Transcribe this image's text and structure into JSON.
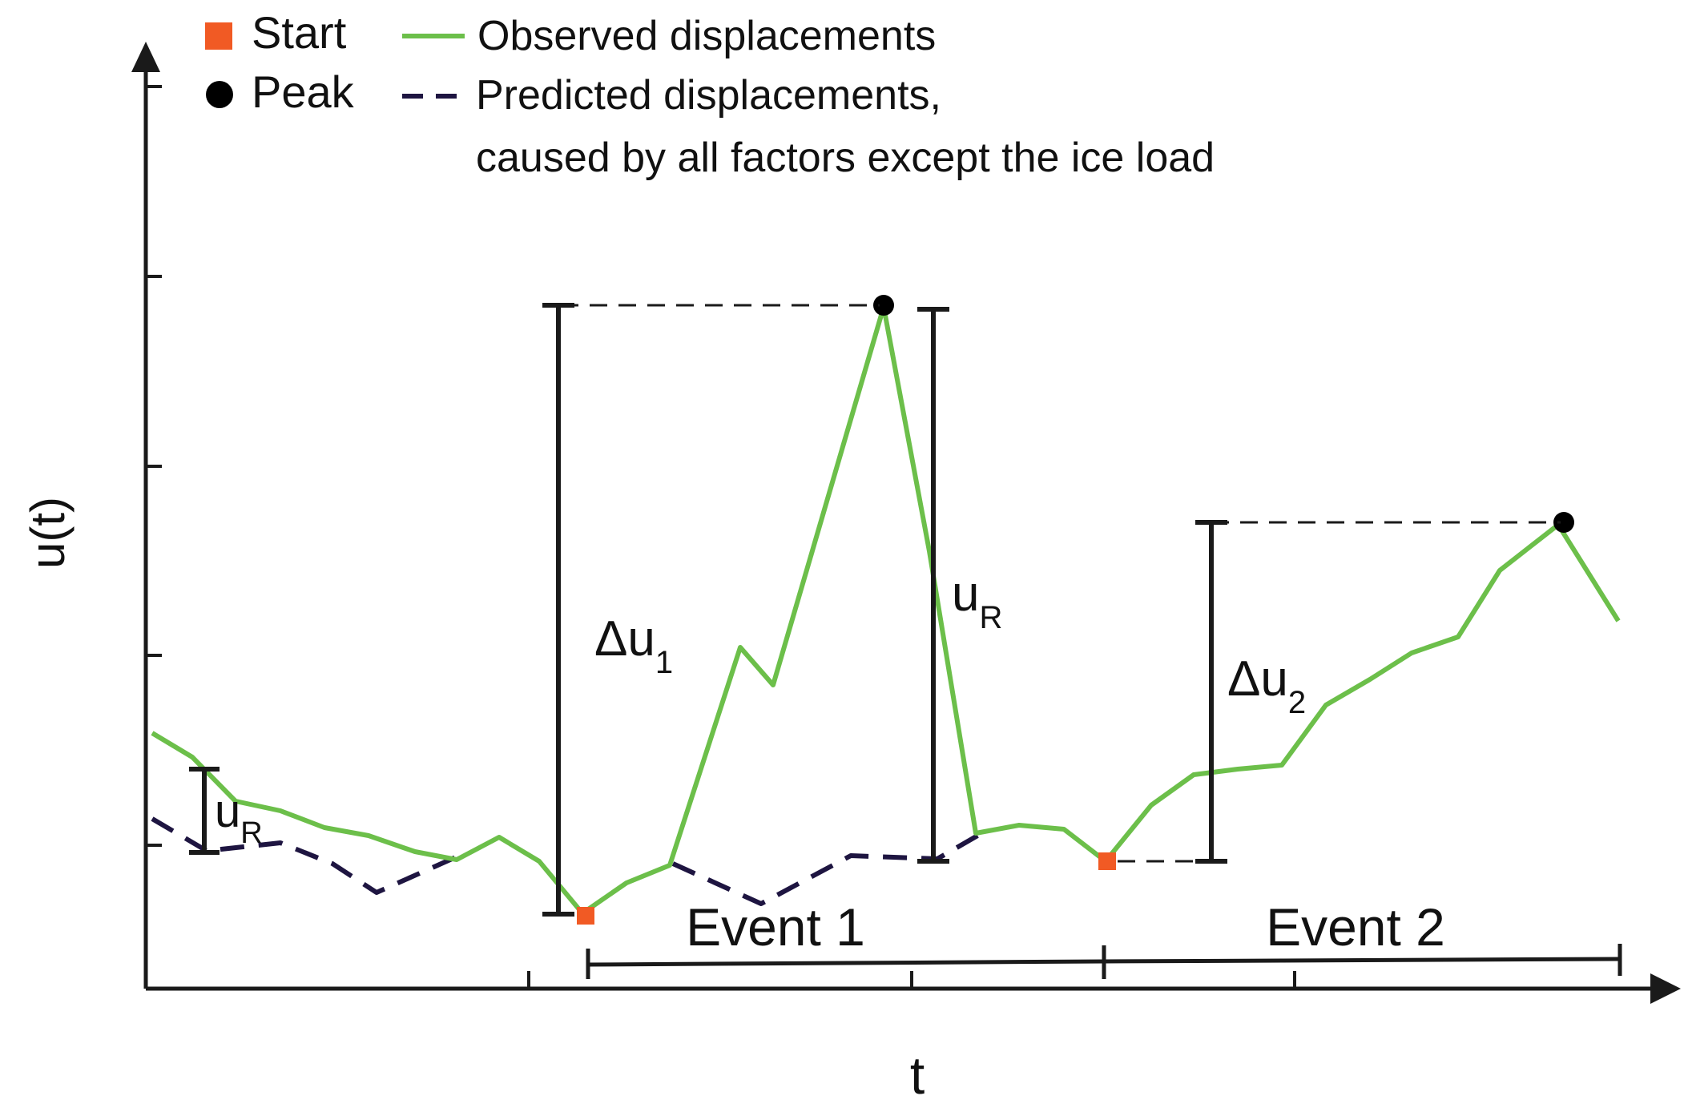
{
  "axes": {
    "y_label": "u(t)",
    "x_label": "t"
  },
  "legend": {
    "start": {
      "label": "Start",
      "color": "#f15a24",
      "marker": "square"
    },
    "peak": {
      "label": "Peak",
      "color": "#000000",
      "marker": "circle"
    },
    "observed": {
      "label": "Observed displacements",
      "color": "#6cbf4a",
      "style": "solid"
    },
    "predicted": {
      "label_line1": "Predicted displacements,",
      "label_line2": "caused by all factors except the ice load",
      "color": "#1e1541",
      "style": "dashed"
    }
  },
  "annotations": {
    "delta_u1": {
      "main": "Δu",
      "sub": "1"
    },
    "delta_u2": {
      "main": "Δu",
      "sub": "2"
    },
    "u_r_event1": {
      "main": "u",
      "sub": "R"
    },
    "u_r_left": {
      "main": "u",
      "sub": "R"
    },
    "event1": "Event 1",
    "event2": "Event 2"
  },
  "colors": {
    "axis": "#1a1a1a",
    "observed": "#6cbf4a",
    "predicted": "#1e1541",
    "start": "#f15a24",
    "peak": "#000000"
  }
}
